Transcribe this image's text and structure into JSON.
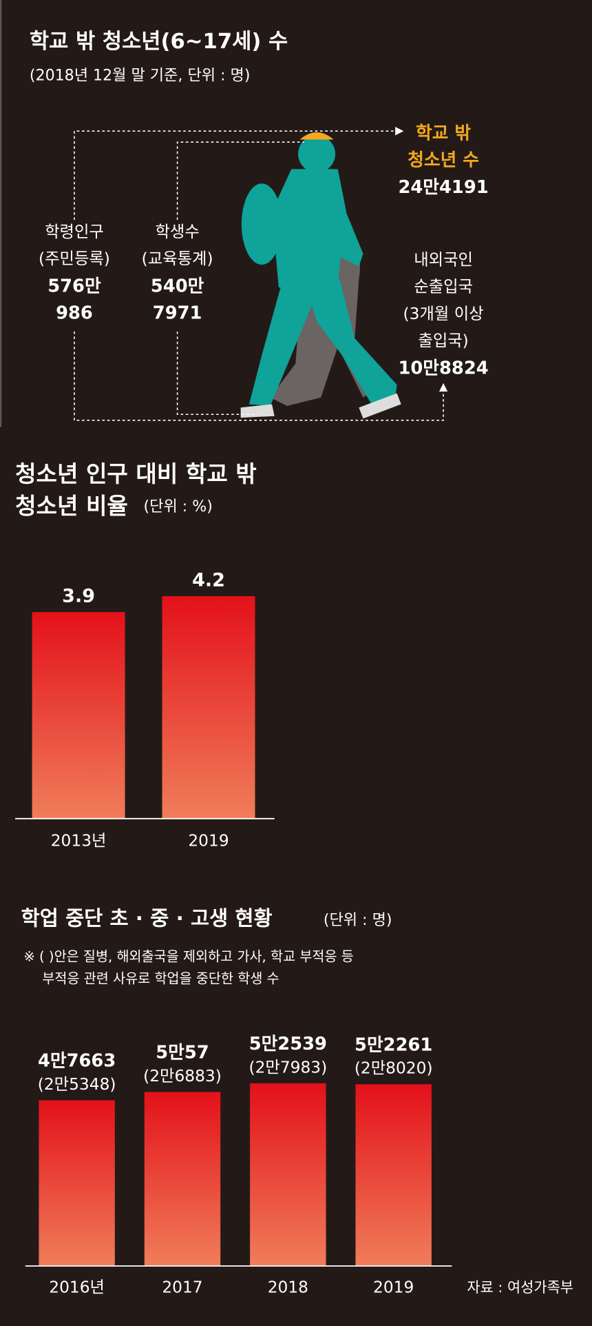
{
  "diagram": {
    "title": "학교 밖 청소년(6~17세) 수",
    "subtitle": "(2018년 12월 말 기준, 단위 : 명)",
    "school_age_population": [
      "학령인구",
      "(주민등록)",
      "576만",
      "986"
    ],
    "students": [
      "학생수",
      "(교육통계)",
      "540만",
      "7971"
    ],
    "out_of_school": [
      "학교 밖",
      "청소년 수",
      "24만4191"
    ],
    "net_emigration": [
      "내외국인",
      "순출입국",
      "(3개월 이상",
      "출입국)",
      "10만8824"
    ]
  },
  "chart_data": [
    {
      "type": "bar",
      "title_lines": [
        "청소년 인구 대비 학교 밖",
        "청소년 비율"
      ],
      "unit": "(단위 : %)",
      "categories": [
        "2013년",
        "2019"
      ],
      "values": [
        3.9,
        4.2
      ]
    },
    {
      "type": "bar",
      "title": "학업 중단 초 · 중 · 고생 현황",
      "unit": "(단위 : 명)",
      "notes": [
        "※ (  )안은 질병, 해외출국을 제외하고 가사, 학교 부적응 등",
        "부적응 관련 사유로 학업을 중단한 학생 수"
      ],
      "categories": [
        "2016년",
        "2017",
        "2018",
        "2019"
      ],
      "values": [
        47663,
        50057,
        52539,
        52261
      ],
      "value_labels": [
        "4만7663",
        "5만57",
        "5만2539",
        "5만2261"
      ],
      "note_values": [
        25348,
        26883,
        27983,
        28020
      ],
      "note_value_labels": [
        "(2만5348)",
        "(2만6883)",
        "(2만7983)",
        "(2만8020)"
      ],
      "source": "자료 : 여성가족부"
    }
  ]
}
